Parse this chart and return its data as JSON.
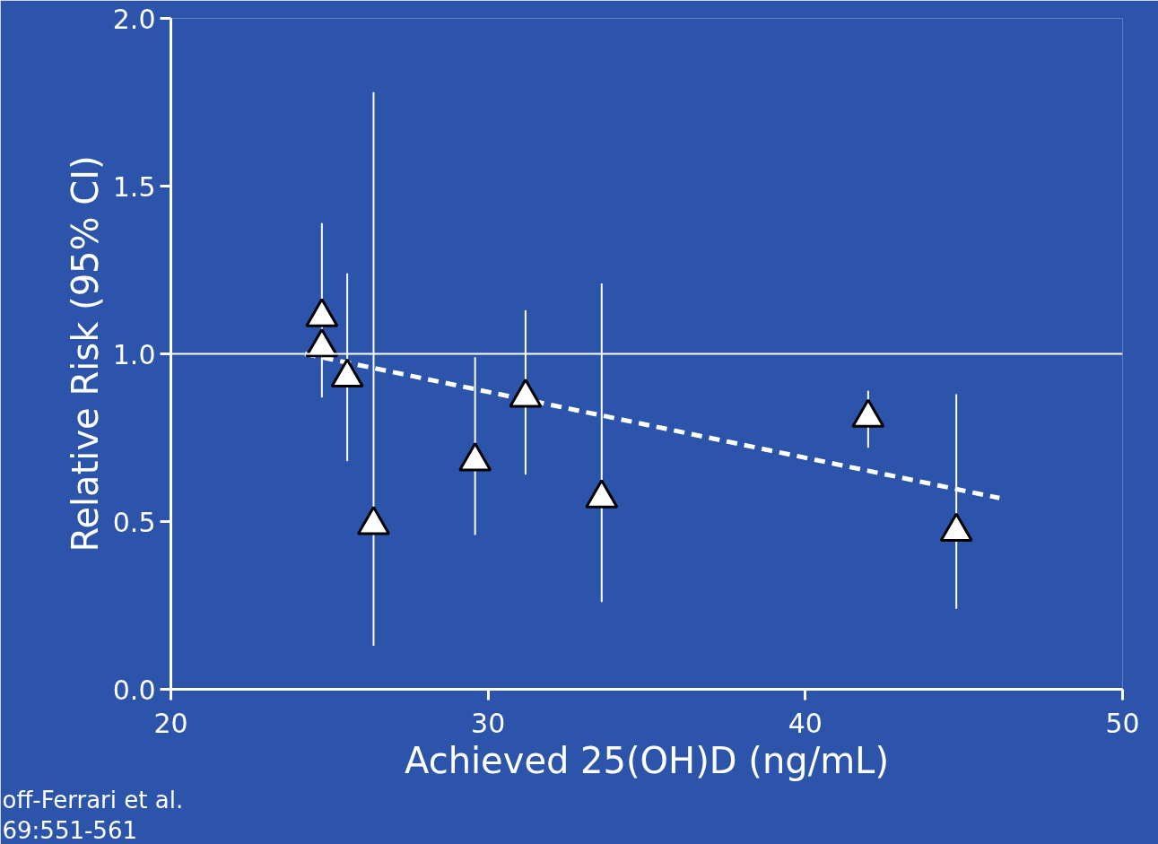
{
  "chart_data": {
    "type": "scatter",
    "xlabel": "Achieved 25(OH)D (ng/mL)",
    "ylabel": "Relative Risk (95% CI)",
    "xlim": [
      20,
      50
    ],
    "ylim": [
      0,
      2
    ],
    "xticks": [
      20,
      30,
      40,
      50
    ],
    "yticks": [
      {
        "value": 0,
        "label": "0.0"
      },
      {
        "value": 0.5,
        "label": "0.5"
      },
      {
        "value": 1,
        "label": "1.0"
      },
      {
        "value": 1.5,
        "label": "1.5"
      },
      {
        "value": 2,
        "label": "2.0"
      }
    ],
    "grid": false,
    "series": [
      {
        "marker": "triangle",
        "color": "#ffffff",
        "x": [
          24.76,
          24.76,
          25.56,
          26.39,
          29.59,
          31.18,
          33.58,
          41.98,
          44.76
        ],
        "values": [
          1.11,
          1.02,
          0.93,
          0.49,
          0.68,
          0.87,
          0.57,
          0.81,
          0.47
        ],
        "errors": [
          [
            0.87,
            1.39
          ],
          null,
          [
            0.68,
            1.24
          ],
          [
            0.13,
            1.78
          ],
          [
            0.46,
            0.99
          ],
          [
            0.64,
            1.13
          ],
          [
            0.26,
            1.21
          ],
          [
            0.72,
            0.89
          ],
          [
            0.24,
            0.88
          ]
        ]
      },
      {
        "type": "line",
        "marker": "none",
        "color": "#ffffff",
        "line_style": "dashed",
        "x": [
          24.23,
          46.12
        ],
        "values": [
          1.0,
          0.57
        ]
      }
    ],
    "ref_lines": [
      {
        "axis": "y",
        "value": 1,
        "color": "#ffffff"
      }
    ],
    "annotations": [
      "off-Ferrari et al.",
      "69:551-561"
    ]
  }
}
